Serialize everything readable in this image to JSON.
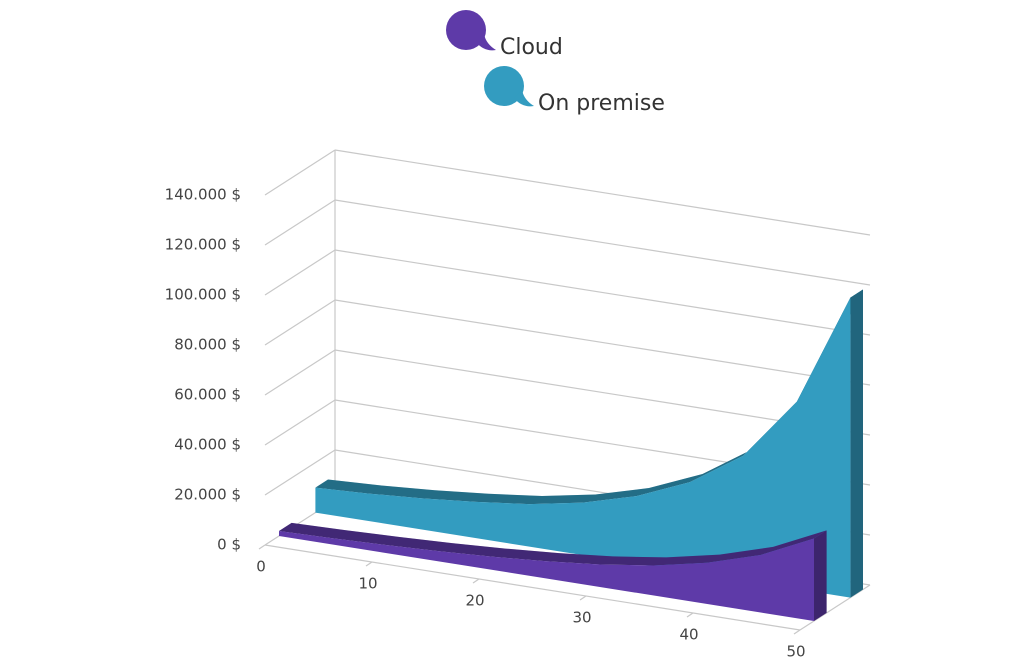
{
  "chart_data": {
    "type": "area",
    "x": [
      0,
      5,
      10,
      15,
      20,
      25,
      30,
      35,
      40,
      45,
      50
    ],
    "series": [
      {
        "name": "Cloud",
        "color": "#5e3aa8",
        "values": [
          2000,
          2500,
          3200,
          4100,
          5300,
          6900,
          9000,
          12000,
          16500,
          23000,
          33000
        ]
      },
      {
        "name": "On premise",
        "color": "#339cc0",
        "values": [
          10000,
          11000,
          12500,
          14500,
          17000,
          21000,
          27000,
          36000,
          50000,
          75000,
          120000
        ]
      }
    ],
    "xlim": [
      0,
      50
    ],
    "xticks": [
      0,
      10,
      20,
      30,
      40,
      50
    ],
    "ylim": [
      0,
      140000
    ],
    "yticks": [
      {
        "value": 0,
        "label": "0 $"
      },
      {
        "value": 20000,
        "label": "20.000 $"
      },
      {
        "value": 40000,
        "label": "40.000 $"
      },
      {
        "value": 60000,
        "label": "60.000 $"
      },
      {
        "value": 80000,
        "label": "80.000 $"
      },
      {
        "value": 100000,
        "label": "100.000 $"
      },
      {
        "value": 120000,
        "label": "120.000 $"
      },
      {
        "value": 140000,
        "label": "140.000 $"
      }
    ],
    "grid": true
  }
}
